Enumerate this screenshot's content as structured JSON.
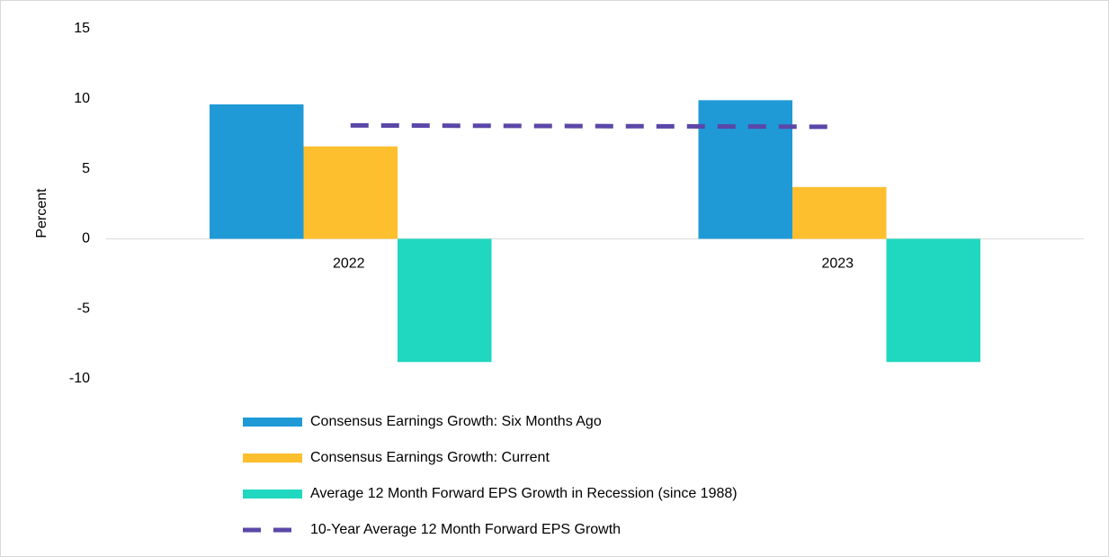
{
  "chart_data": {
    "type": "bar",
    "y_label": "Percent",
    "categories": [
      "2022",
      "2023"
    ],
    "series": [
      {
        "name": "Consensus Earnings Growth: Six Months Ago",
        "color": "#1f9ad6",
        "type": "bar",
        "values": [
          9.6,
          9.9
        ]
      },
      {
        "name": "Consensus Earnings Growth: Current",
        "color": "#fdbf2d",
        "type": "bar",
        "values": [
          6.6,
          3.7
        ]
      },
      {
        "name": "Average 12 Month Forward EPS Growth in Recession (since 1988)",
        "color": "#1fd8bf",
        "type": "bar",
        "values": [
          -8.8,
          -8.8
        ]
      },
      {
        "name": "10-Year Average 12 Month Forward EPS Growth",
        "color": "#5b47a8",
        "type": "line",
        "dashed": true,
        "values": [
          8.1,
          8.0
        ]
      }
    ],
    "ylim": [
      -10,
      15
    ],
    "yticks": [
      -10,
      -5,
      0,
      5,
      10,
      15
    ],
    "grid": false
  }
}
